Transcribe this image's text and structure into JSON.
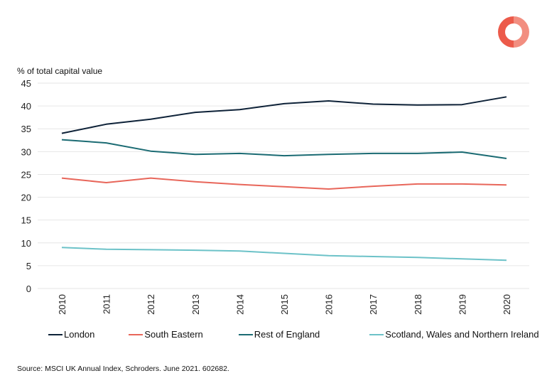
{
  "logo": {
    "icon": "schroders-ring-logo",
    "color": "#ec5a4a"
  },
  "source_note": "Source: MSCI UK Annual Index, Schroders. June 2021. 602682.",
  "chart_data": {
    "type": "line",
    "title": "",
    "xlabel": "",
    "ylabel": "% of total capital value",
    "x": [
      "2010",
      "2011",
      "2012",
      "2013",
      "2014",
      "2015",
      "2016",
      "2017",
      "2018",
      "2019",
      "2020"
    ],
    "ylim": [
      0,
      45
    ],
    "yticks": [
      0,
      5,
      10,
      15,
      20,
      25,
      30,
      35,
      40,
      45
    ],
    "grid": true,
    "legend_position": "bottom",
    "series": [
      {
        "name": "London",
        "color": "#0e2238",
        "values": [
          34.0,
          36.0,
          37.1,
          38.6,
          39.2,
          40.5,
          41.1,
          40.4,
          40.2,
          40.3,
          42.0
        ]
      },
      {
        "name": "South Eastern",
        "color": "#e8665a",
        "values": [
          24.2,
          23.2,
          24.2,
          23.4,
          22.8,
          22.3,
          21.8,
          22.4,
          22.9,
          22.9,
          22.7
        ]
      },
      {
        "name": "Rest of England",
        "color": "#1b6b73",
        "values": [
          32.6,
          31.9,
          30.1,
          29.4,
          29.6,
          29.1,
          29.4,
          29.6,
          29.6,
          29.9,
          28.5
        ]
      },
      {
        "name": "Scotland, Wales and Northern Ireland",
        "color": "#6cc2c8",
        "values": [
          9.0,
          8.6,
          8.5,
          8.4,
          8.2,
          7.7,
          7.2,
          7.0,
          6.8,
          6.5,
          6.2
        ]
      }
    ]
  }
}
